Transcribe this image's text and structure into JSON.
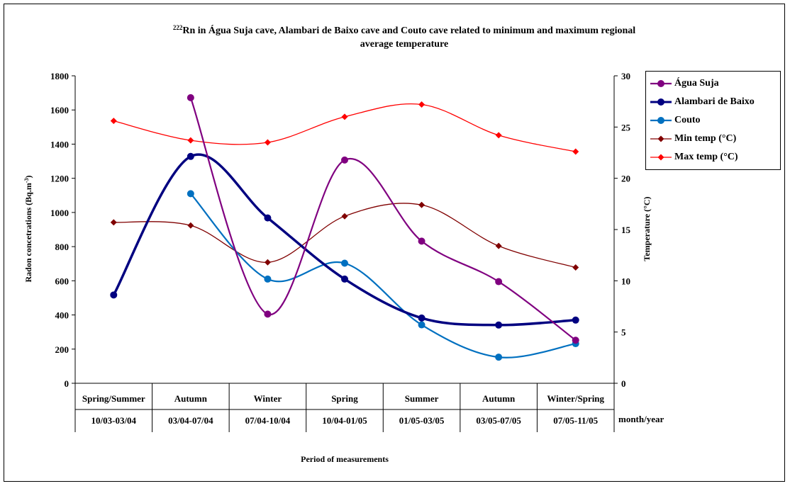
{
  "chart_data": {
    "type": "line",
    "title_sup": "222",
    "title_line1": "Rn in Água Suja cave, Alambari de Baixo cave and Couto cave related to minimum and maximum regional",
    "title_line2": "average temperature",
    "ylabel_left_main": "Radon concetrations (Bq.m",
    "ylabel_left_sup": "-3",
    "ylabel_left_end": ")",
    "ylabel_right": "Temperature (°C)",
    "xlabel": "Period of measurements",
    "x_unit_label": "month/year",
    "categories_season": [
      "Spring/Summer",
      "Autumn",
      "Winter",
      "Spring",
      "Summer",
      "Autumn",
      "Winter/Spring"
    ],
    "categories_period": [
      "10/03-03/04",
      "03/04-07/04",
      "07/04-10/04",
      "10/04-01/05",
      "01/05-03/05",
      "03/05-07/05",
      "07/05-11/05"
    ],
    "ylim_left": [
      0,
      1800
    ],
    "yticks_left": [
      0,
      200,
      400,
      600,
      800,
      1000,
      1200,
      1400,
      1600,
      1800
    ],
    "ylim_right": [
      0,
      30
    ],
    "yticks_right": [
      0,
      5,
      10,
      15,
      20,
      25,
      30
    ],
    "legend_position": "right",
    "series": [
      {
        "name": "Água Suja",
        "axis": "left",
        "color": "#800080",
        "marker": "circle",
        "width": 2.2,
        "values": [
          null,
          1672,
          405,
          1307,
          832,
          595,
          252
        ]
      },
      {
        "name": "Alambari de Baixo",
        "axis": "left",
        "color": "#000080",
        "marker": "circle",
        "width": 3.5,
        "values": [
          517,
          1328,
          968,
          610,
          382,
          341,
          370
        ]
      },
      {
        "name": "Couto",
        "axis": "left",
        "color": "#0070C0",
        "marker": "circle",
        "width": 2.2,
        "values": [
          null,
          1110,
          610,
          703,
          342,
          153,
          232
        ]
      },
      {
        "name": "Min temp (°C)",
        "axis": "right",
        "color": "#800000",
        "marker": "diamond",
        "width": 1.3,
        "values": [
          15.7,
          15.4,
          11.8,
          16.3,
          17.4,
          13.4,
          11.3
        ]
      },
      {
        "name": "Max temp (°C)",
        "axis": "right",
        "color": "#FF0000",
        "marker": "diamond",
        "width": 1.3,
        "values": [
          25.6,
          23.7,
          23.5,
          26.0,
          27.2,
          24.2,
          22.6
        ]
      }
    ]
  }
}
